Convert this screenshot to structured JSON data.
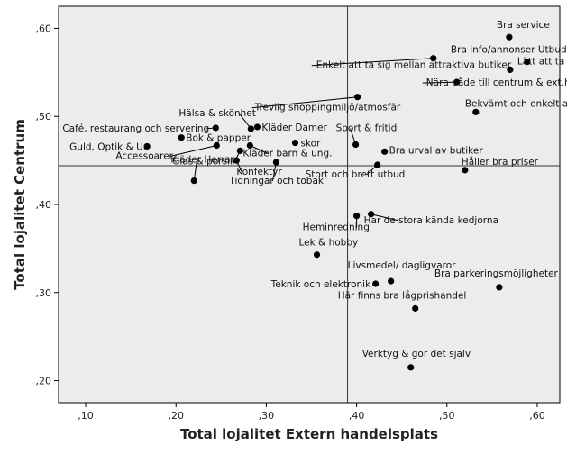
{
  "chart_data": {
    "type": "scatter",
    "xlabel": "Total lojalitet Extern handelsplats",
    "ylabel": "Total lojalitet Centrum",
    "xlim": [
      0.07,
      0.625
    ],
    "ylim": [
      0.175,
      0.625
    ],
    "xticks": [
      0.1,
      0.2,
      0.3,
      0.4,
      0.5,
      0.6
    ],
    "yticks": [
      0.2,
      0.3,
      0.4,
      0.5,
      0.6
    ],
    "xtick_labels": [
      ",10",
      ",20",
      ",30",
      ",40",
      ",50",
      ",60"
    ],
    "ytick_labels": [
      ",20",
      ",30",
      ",40",
      ",50",
      ",60"
    ],
    "reference_lines": {
      "x": 0.39,
      "y": 0.444
    },
    "grid": false,
    "background": "#ececec",
    "marker_color": "#000000",
    "points": [
      {
        "label": "Bra service",
        "x": 0.569,
        "y": 0.59
      },
      {
        "label": "Bra info/annonser Utbud",
        "x": 0.589,
        "y": 0.562
      },
      {
        "label": "Enkelt att ta sig mellan attraktiva butiker",
        "x": 0.485,
        "y": 0.566
      },
      {
        "label": "Lätt att ta mig dit",
        "x": 0.57,
        "y": 0.553
      },
      {
        "label": "Nära både till centrum & ext.handel",
        "x": 0.511,
        "y": 0.539
      },
      {
        "label": "Trevlig shoppingmiljö/atmosfär",
        "x": 0.401,
        "y": 0.522
      },
      {
        "label": "Bekvämt och enkelt att handla här",
        "x": 0.532,
        "y": 0.505
      },
      {
        "label": "Hälsa & skönhet",
        "x": 0.283,
        "y": 0.486
      },
      {
        "label": "Café, restaurang och servering",
        "x": 0.244,
        "y": 0.487
      },
      {
        "label": "Kläder Damer",
        "x": 0.29,
        "y": 0.488
      },
      {
        "label": "Bok & papper",
        "x": 0.206,
        "y": 0.476
      },
      {
        "label": "Sport & fritid",
        "x": 0.399,
        "y": 0.468
      },
      {
        "label": "skor",
        "x": 0.332,
        "y": 0.47
      },
      {
        "label": "Guld, Optik & Ur",
        "x": 0.168,
        "y": 0.466
      },
      {
        "label": "Accessoarer",
        "x": 0.245,
        "y": 0.467
      },
      {
        "label": "Kläder Herrar",
        "x": 0.271,
        "y": 0.461
      },
      {
        "label": "Kläder barn & ung.",
        "x": 0.282,
        "y": 0.467
      },
      {
        "label": "Bra urval av butiker",
        "x": 0.431,
        "y": 0.46
      },
      {
        "label": "Konfektyr",
        "x": 0.267,
        "y": 0.45
      },
      {
        "label": "Tidningar och tobak",
        "x": 0.311,
        "y": 0.448
      },
      {
        "label": "Stort och brett utbud",
        "x": 0.423,
        "y": 0.445
      },
      {
        "label": "Håller bra priser",
        "x": 0.52,
        "y": 0.439
      },
      {
        "label": "Glas & porslin",
        "x": 0.22,
        "y": 0.427
      },
      {
        "label": "Heminredning",
        "x": 0.4,
        "y": 0.387
      },
      {
        "label": "Har de stora kända kedjorna",
        "x": 0.416,
        "y": 0.389
      },
      {
        "label": "Lek & hobby",
        "x": 0.356,
        "y": 0.343
      },
      {
        "label": "Livsmedel/ dagligvaror",
        "x": 0.438,
        "y": 0.313
      },
      {
        "label": "Teknik och elektronik",
        "x": 0.421,
        "y": 0.31
      },
      {
        "label": "Bra parkeringsmöjligheter",
        "x": 0.558,
        "y": 0.306
      },
      {
        "label": "Här finns bra lågprishandel",
        "x": 0.465,
        "y": 0.282
      },
      {
        "label": "Verktyg & gör det själv",
        "x": 0.46,
        "y": 0.215
      }
    ]
  }
}
